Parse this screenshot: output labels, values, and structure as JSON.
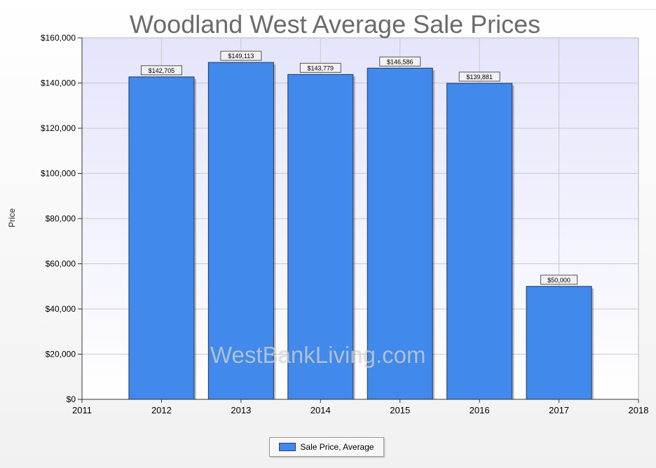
{
  "chart_data": {
    "type": "bar",
    "title": "Woodland West Average Sale Prices",
    "xlabel": "",
    "ylabel": "Price",
    "x_ticks": [
      "2011",
      "2012",
      "2013",
      "2014",
      "2015",
      "2016",
      "2017",
      "2018"
    ],
    "xlim": [
      2011,
      2018
    ],
    "ylim": [
      0,
      160000
    ],
    "y_ticks": [
      "$0",
      "$20,000",
      "$40,000",
      "$60,000",
      "$80,000",
      "$100,000",
      "$120,000",
      "$140,000",
      "$160,000"
    ],
    "grid": true,
    "legend_position": "bottom-center",
    "series": [
      {
        "name": "Sale Price, Average",
        "color": "#4189ea",
        "points": [
          {
            "x": 2012,
            "value": 142705,
            "label": "$142,705"
          },
          {
            "x": 2013,
            "value": 149113,
            "label": "$149,113"
          },
          {
            "x": 2014,
            "value": 143779,
            "label": "$143,779"
          },
          {
            "x": 2015,
            "value": 146586,
            "label": "$146,586"
          },
          {
            "x": 2016,
            "value": 139881,
            "label": "$139,881"
          },
          {
            "x": 2017,
            "value": 50000,
            "label": "$50,000"
          }
        ]
      }
    ]
  },
  "watermark": "WestBankLiving.com"
}
